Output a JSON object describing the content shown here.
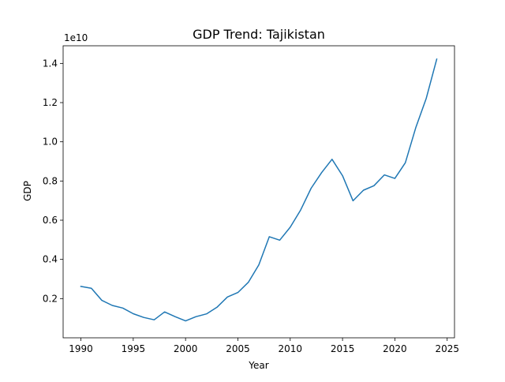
{
  "chart_data": {
    "type": "line",
    "title": "GDP Trend: Tajikistan",
    "xlabel": "Year",
    "ylabel": "GDP",
    "y_offset_label": "1e10",
    "xlim": [
      1988.3,
      2025.7
    ],
    "ylim": [
      0.0,
      1.49
    ],
    "x_ticks": [
      1990,
      1995,
      2000,
      2005,
      2010,
      2015,
      2020,
      2025
    ],
    "y_ticks": [
      0.2,
      0.4,
      0.6,
      0.8,
      1.0,
      1.2,
      1.4
    ],
    "y_tick_labels": [
      "0.2",
      "0.4",
      "0.6",
      "0.8",
      "1.0",
      "1.2",
      "1.4"
    ],
    "grid": false,
    "line_color": "#1f77b4",
    "series": [
      {
        "x": [
          1990,
          1991,
          1992,
          1993,
          1994,
          1995,
          1996,
          1997,
          1998,
          1999,
          2000,
          2001,
          2002,
          2003,
          2004,
          2005,
          2006,
          2007,
          2008,
          2009,
          2010,
          2011,
          2012,
          2013,
          2014,
          2015,
          2016,
          2017,
          2018,
          2019,
          2020,
          2021,
          2022,
          2023,
          2024
        ],
        "values": [
          0.262,
          0.253,
          0.191,
          0.165,
          0.152,
          0.123,
          0.104,
          0.092,
          0.132,
          0.108,
          0.086,
          0.108,
          0.122,
          0.156,
          0.208,
          0.231,
          0.283,
          0.372,
          0.516,
          0.498,
          0.564,
          0.652,
          0.763,
          0.843,
          0.911,
          0.827,
          0.699,
          0.753,
          0.776,
          0.831,
          0.813,
          0.893,
          1.072,
          1.222,
          1.422
        ]
      }
    ]
  }
}
